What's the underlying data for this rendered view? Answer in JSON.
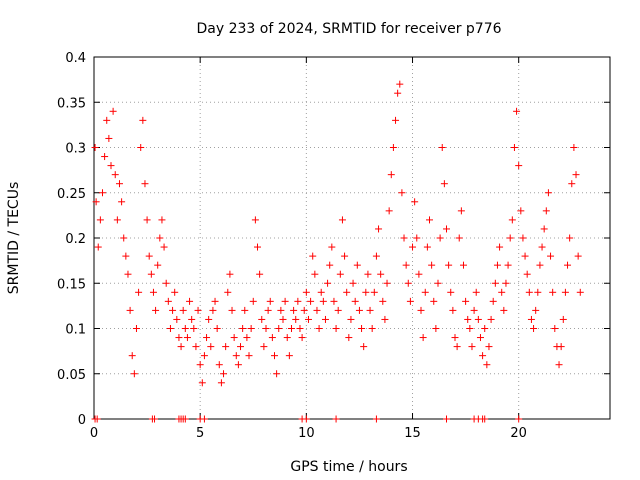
{
  "chart_data": {
    "type": "scatter",
    "title": "Day 233 of 2024, SRMTID for receiver p776",
    "xlabel": "GPS time / hours",
    "ylabel": "SRMTID / TECUs",
    "xlim": [
      0,
      24.3
    ],
    "ylim": [
      0,
      0.4
    ],
    "xticks": [
      0,
      5,
      10,
      15,
      20
    ],
    "xtick_labels": [
      "0",
      "5",
      "10",
      "15",
      "20"
    ],
    "yticks": [
      0,
      0.05,
      0.1,
      0.15,
      0.2,
      0.25,
      0.3,
      0.35,
      0.4
    ],
    "ytick_labels": [
      "0",
      "0.05",
      "0.1",
      "0.15",
      "0.2",
      "0.25",
      "0.3",
      "0.35",
      "0.4"
    ],
    "grid": true,
    "marker": "+",
    "series_color": "#ff0000",
    "series": [
      {
        "name": "SRMTID",
        "points": [
          [
            0.05,
            0.3
          ],
          [
            0.1,
            0.24
          ],
          [
            0.2,
            0.19
          ],
          [
            0.3,
            0.22
          ],
          [
            0.4,
            0.25
          ],
          [
            0.5,
            0.29
          ],
          [
            0.6,
            0.33
          ],
          [
            0.7,
            0.31
          ],
          [
            0.8,
            0.28
          ],
          [
            0.9,
            0.34
          ],
          [
            1.0,
            0.27
          ],
          [
            1.1,
            0.22
          ],
          [
            1.2,
            0.26
          ],
          [
            1.3,
            0.24
          ],
          [
            1.4,
            0.2
          ],
          [
            1.5,
            0.18
          ],
          [
            1.6,
            0.16
          ],
          [
            1.7,
            0.12
          ],
          [
            1.8,
            0.07
          ],
          [
            1.9,
            0.05
          ],
          [
            2.0,
            0.1
          ],
          [
            2.1,
            0.14
          ],
          [
            2.2,
            0.3
          ],
          [
            2.3,
            0.33
          ],
          [
            2.4,
            0.26
          ],
          [
            2.5,
            0.22
          ],
          [
            2.6,
            0.18
          ],
          [
            2.7,
            0.16
          ],
          [
            2.8,
            0.14
          ],
          [
            2.9,
            0.12
          ],
          [
            3.0,
            0.17
          ],
          [
            3.1,
            0.2
          ],
          [
            3.2,
            0.22
          ],
          [
            3.3,
            0.19
          ],
          [
            3.4,
            0.15
          ],
          [
            3.5,
            0.13
          ],
          [
            3.6,
            0.1
          ],
          [
            3.7,
            0.12
          ],
          [
            3.8,
            0.14
          ],
          [
            3.9,
            0.11
          ],
          [
            4.0,
            0.09
          ],
          [
            4.1,
            0.08
          ],
          [
            4.2,
            0.12
          ],
          [
            4.3,
            0.1
          ],
          [
            4.4,
            0.09
          ],
          [
            4.5,
            0.13
          ],
          [
            4.6,
            0.11
          ],
          [
            4.7,
            0.1
          ],
          [
            4.8,
            0.08
          ],
          [
            4.9,
            0.12
          ],
          [
            5.0,
            0.06
          ],
          [
            5.1,
            0.04
          ],
          [
            5.2,
            0.07
          ],
          [
            5.3,
            0.09
          ],
          [
            5.4,
            0.11
          ],
          [
            5.5,
            0.08
          ],
          [
            5.6,
            0.12
          ],
          [
            5.7,
            0.13
          ],
          [
            5.8,
            0.1
          ],
          [
            5.9,
            0.06
          ],
          [
            6.0,
            0.04
          ],
          [
            6.1,
            0.05
          ],
          [
            6.2,
            0.08
          ],
          [
            6.3,
            0.14
          ],
          [
            6.4,
            0.16
          ],
          [
            6.5,
            0.12
          ],
          [
            6.6,
            0.09
          ],
          [
            6.7,
            0.07
          ],
          [
            6.8,
            0.06
          ],
          [
            6.9,
            0.08
          ],
          [
            7.0,
            0.1
          ],
          [
            7.1,
            0.12
          ],
          [
            7.2,
            0.09
          ],
          [
            7.3,
            0.07
          ],
          [
            7.4,
            0.1
          ],
          [
            7.5,
            0.13
          ],
          [
            7.6,
            0.22
          ],
          [
            7.7,
            0.19
          ],
          [
            7.8,
            0.16
          ],
          [
            7.9,
            0.11
          ],
          [
            8.0,
            0.08
          ],
          [
            8.1,
            0.1
          ],
          [
            8.2,
            0.12
          ],
          [
            8.3,
            0.13
          ],
          [
            8.4,
            0.09
          ],
          [
            8.5,
            0.07
          ],
          [
            8.6,
            0.05
          ],
          [
            8.7,
            0.1
          ],
          [
            8.8,
            0.12
          ],
          [
            8.9,
            0.11
          ],
          [
            9.0,
            0.13
          ],
          [
            9.1,
            0.09
          ],
          [
            9.2,
            0.07
          ],
          [
            9.3,
            0.1
          ],
          [
            9.4,
            0.12
          ],
          [
            9.5,
            0.11
          ],
          [
            9.6,
            0.13
          ],
          [
            9.7,
            0.1
          ],
          [
            9.8,
            0.09
          ],
          [
            9.9,
            0.12
          ],
          [
            10.0,
            0.14
          ],
          [
            10.1,
            0.11
          ],
          [
            10.2,
            0.13
          ],
          [
            10.3,
            0.18
          ],
          [
            10.4,
            0.16
          ],
          [
            10.5,
            0.12
          ],
          [
            10.6,
            0.1
          ],
          [
            10.7,
            0.14
          ],
          [
            10.8,
            0.13
          ],
          [
            10.9,
            0.11
          ],
          [
            11.0,
            0.15
          ],
          [
            11.1,
            0.17
          ],
          [
            11.2,
            0.19
          ],
          [
            11.3,
            0.13
          ],
          [
            11.4,
            0.1
          ],
          [
            11.5,
            0.12
          ],
          [
            11.6,
            0.16
          ],
          [
            11.7,
            0.22
          ],
          [
            11.8,
            0.18
          ],
          [
            11.9,
            0.14
          ],
          [
            12.0,
            0.09
          ],
          [
            12.1,
            0.11
          ],
          [
            12.2,
            0.15
          ],
          [
            12.3,
            0.13
          ],
          [
            12.4,
            0.17
          ],
          [
            12.5,
            0.12
          ],
          [
            12.6,
            0.1
          ],
          [
            12.7,
            0.08
          ],
          [
            12.8,
            0.14
          ],
          [
            12.9,
            0.16
          ],
          [
            13.0,
            0.12
          ],
          [
            13.1,
            0.1
          ],
          [
            13.2,
            0.14
          ],
          [
            13.3,
            0.18
          ],
          [
            13.4,
            0.21
          ],
          [
            13.5,
            0.16
          ],
          [
            13.6,
            0.13
          ],
          [
            13.7,
            0.11
          ],
          [
            13.8,
            0.15
          ],
          [
            13.9,
            0.23
          ],
          [
            14.0,
            0.27
          ],
          [
            14.1,
            0.3
          ],
          [
            14.2,
            0.33
          ],
          [
            14.3,
            0.36
          ],
          [
            14.4,
            0.37
          ],
          [
            14.5,
            0.25
          ],
          [
            14.6,
            0.2
          ],
          [
            14.7,
            0.17
          ],
          [
            14.8,
            0.15
          ],
          [
            14.9,
            0.13
          ],
          [
            15.0,
            0.19
          ],
          [
            15.1,
            0.24
          ],
          [
            15.2,
            0.2
          ],
          [
            15.3,
            0.16
          ],
          [
            15.4,
            0.12
          ],
          [
            15.5,
            0.09
          ],
          [
            15.6,
            0.14
          ],
          [
            15.7,
            0.19
          ],
          [
            15.8,
            0.22
          ],
          [
            15.9,
            0.17
          ],
          [
            16.0,
            0.13
          ],
          [
            16.1,
            0.1
          ],
          [
            16.2,
            0.15
          ],
          [
            16.3,
            0.2
          ],
          [
            16.4,
            0.3
          ],
          [
            16.5,
            0.26
          ],
          [
            16.6,
            0.21
          ],
          [
            16.7,
            0.17
          ],
          [
            16.8,
            0.14
          ],
          [
            16.9,
            0.12
          ],
          [
            17.0,
            0.09
          ],
          [
            17.1,
            0.08
          ],
          [
            17.2,
            0.2
          ],
          [
            17.3,
            0.23
          ],
          [
            17.4,
            0.17
          ],
          [
            17.5,
            0.13
          ],
          [
            17.6,
            0.11
          ],
          [
            17.7,
            0.1
          ],
          [
            17.8,
            0.08
          ],
          [
            17.9,
            0.12
          ],
          [
            18.0,
            0.14
          ],
          [
            18.1,
            0.11
          ],
          [
            18.2,
            0.09
          ],
          [
            18.3,
            0.07
          ],
          [
            18.4,
            0.1
          ],
          [
            18.5,
            0.06
          ],
          [
            18.6,
            0.08
          ],
          [
            18.7,
            0.11
          ],
          [
            18.8,
            0.13
          ],
          [
            18.9,
            0.15
          ],
          [
            19.0,
            0.17
          ],
          [
            19.1,
            0.19
          ],
          [
            19.2,
            0.14
          ],
          [
            19.3,
            0.12
          ],
          [
            19.4,
            0.15
          ],
          [
            19.5,
            0.17
          ],
          [
            19.6,
            0.2
          ],
          [
            19.7,
            0.22
          ],
          [
            19.8,
            0.3
          ],
          [
            19.9,
            0.34
          ],
          [
            20.0,
            0.28
          ],
          [
            20.1,
            0.23
          ],
          [
            20.2,
            0.2
          ],
          [
            20.3,
            0.18
          ],
          [
            20.4,
            0.16
          ],
          [
            20.5,
            0.14
          ],
          [
            20.6,
            0.11
          ],
          [
            20.7,
            0.1
          ],
          [
            20.8,
            0.12
          ],
          [
            20.9,
            0.14
          ],
          [
            21.0,
            0.17
          ],
          [
            21.1,
            0.19
          ],
          [
            21.2,
            0.21
          ],
          [
            21.3,
            0.23
          ],
          [
            21.4,
            0.25
          ],
          [
            21.5,
            0.18
          ],
          [
            21.6,
            0.14
          ],
          [
            21.7,
            0.1
          ],
          [
            21.8,
            0.08
          ],
          [
            21.9,
            0.06
          ],
          [
            22.0,
            0.08
          ],
          [
            22.1,
            0.11
          ],
          [
            22.2,
            0.14
          ],
          [
            22.3,
            0.17
          ],
          [
            22.4,
            0.2
          ],
          [
            22.5,
            0.26
          ],
          [
            22.6,
            0.3
          ],
          [
            22.7,
            0.27
          ],
          [
            22.8,
            0.18
          ],
          [
            22.9,
            0.14
          ]
        ],
        "zero_points": [
          0.05,
          0.15,
          2.75,
          2.85,
          4.0,
          4.1,
          4.2,
          4.3,
          5.0,
          5.2,
          9.8,
          10.0,
          11.4,
          13.3,
          16.6,
          17.9,
          18.1,
          18.3,
          18.4,
          20.0
        ]
      }
    ]
  }
}
